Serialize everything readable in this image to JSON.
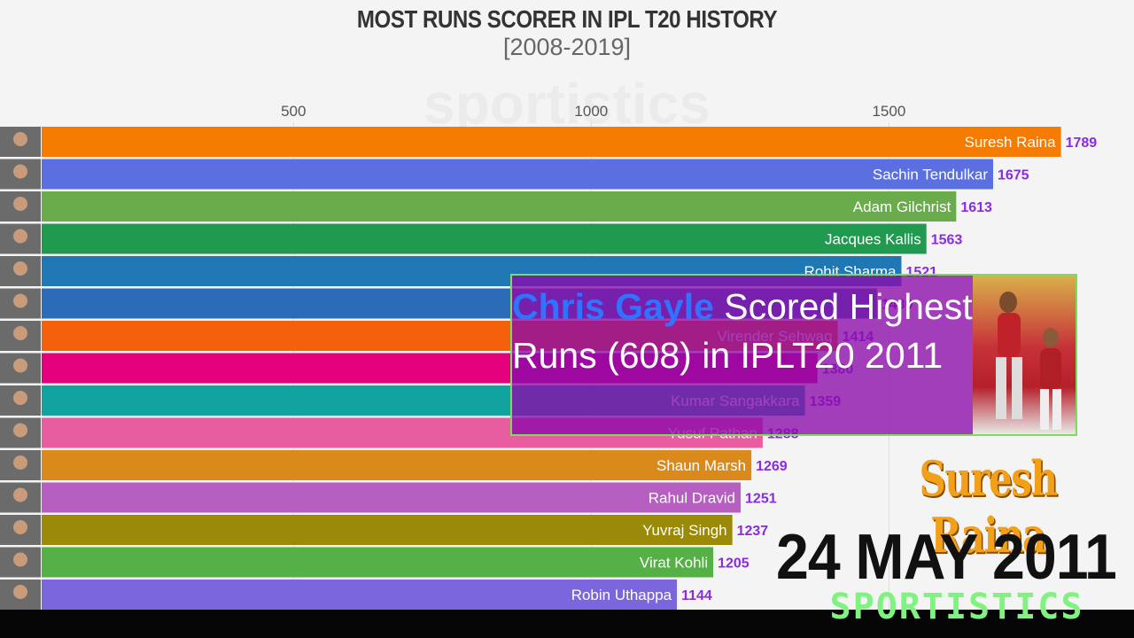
{
  "chart_data": {
    "type": "bar",
    "title": "MOST RUNS SCORER IN IPL T20 HISTORY",
    "subtitle": "[2008-2019]",
    "xticks": [
      500,
      1000,
      1500
    ],
    "xlim": [
      77,
      1800
    ],
    "orientation": "horizontal",
    "bars": [
      {
        "name": "Suresh Raina",
        "value": 1789,
        "color": "#f57c00"
      },
      {
        "name": "Sachin Tendulkar",
        "value": 1675,
        "color": "#5b6fe0"
      },
      {
        "name": "Adam Gilchrist",
        "value": 1613,
        "color": "#6aab4b"
      },
      {
        "name": "Jacques Kallis",
        "value": 1563,
        "color": "#1f9a4f"
      },
      {
        "name": "Rohit Sharma",
        "value": 1521,
        "color": "#1f78b4"
      },
      {
        "name": "",
        "value": 1480,
        "color": "#2b6cb8"
      },
      {
        "name": "Virender Sehwag",
        "value": 1414,
        "color": "#f5600a"
      },
      {
        "name": "",
        "value": 1380,
        "color": "#e5007d"
      },
      {
        "name": "Kumar Sangakkara",
        "value": 1359,
        "color": "#11a3a0"
      },
      {
        "name": "Yusuf Pathan",
        "value": 1288,
        "color": "#e85ca0"
      },
      {
        "name": "Shaun Marsh",
        "value": 1269,
        "color": "#d98a1a"
      },
      {
        "name": "Rahul Dravid",
        "value": 1251,
        "color": "#b65fc0"
      },
      {
        "name": "Yuvraj Singh",
        "value": 1237,
        "color": "#9a8a07"
      },
      {
        "name": "Virat Kohli",
        "value": 1205,
        "color": "#55b046"
      },
      {
        "name": "Robin Uthappa",
        "value": 1144,
        "color": "#7b66de"
      }
    ]
  },
  "overlay": {
    "callout_highlight": "Chris Gayle",
    "callout_line1_rest": " Scored Highest",
    "callout_line2": "Runs (608) in IPLT20 2011",
    "leader_name": "Suresh Raina",
    "date": "24 MAY 2011",
    "brand": "SPORTISTICS",
    "watermark": "sportistics"
  },
  "colors": {
    "value_label": "#8a2be2",
    "bar_label": "#ffffff",
    "grid": "#dddddd"
  }
}
